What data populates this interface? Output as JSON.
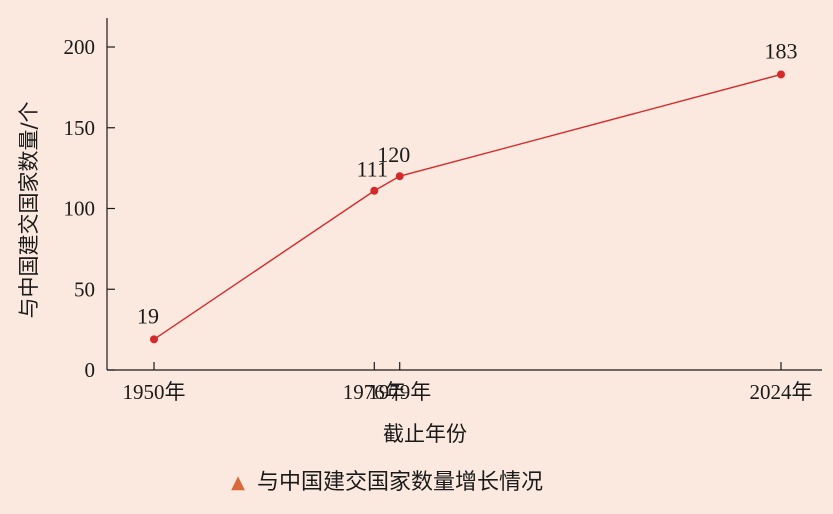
{
  "chart_data": {
    "type": "line",
    "x": [
      1950,
      1976,
      1979,
      2024
    ],
    "x_tick_labels": [
      "1950年",
      "1976年",
      "1979年",
      "2024年"
    ],
    "values": [
      19,
      111,
      120,
      183
    ],
    "data_labels": [
      "19",
      "111",
      "120",
      "183"
    ],
    "xlabel": "截止年份",
    "ylabel": "与中国建交国家数量/个",
    "ylim": [
      0,
      200
    ],
    "y_ticks": [
      0,
      50,
      100,
      150,
      200
    ],
    "xlim": [
      1950,
      2024
    ],
    "grid": false,
    "line_color": "#d42a2a",
    "marker_color": "#d42a2a"
  },
  "caption": {
    "marker": "▲",
    "marker_color": "#d9693a",
    "text": "与中国建交国家数量增长情况"
  },
  "colors": {
    "background": "#fbe9df",
    "axis": "#1a1a1a"
  }
}
